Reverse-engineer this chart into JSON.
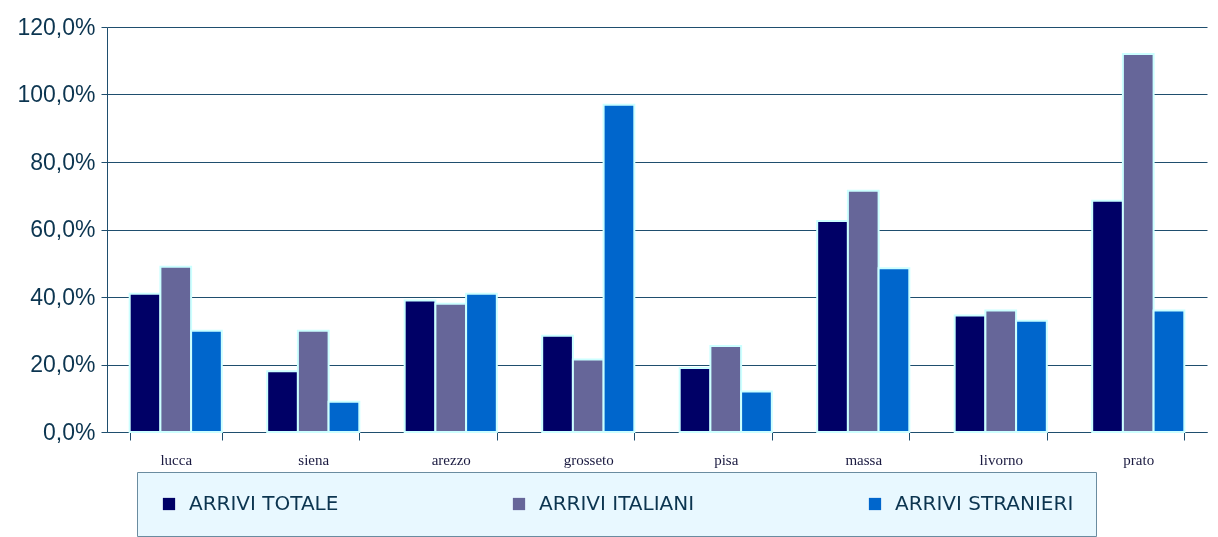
{
  "chart_data": {
    "type": "bar",
    "categories": [
      "lucca",
      "siena",
      "arezzo",
      "grosseto",
      "pisa",
      "massa",
      "livorno",
      "prato"
    ],
    "series": [
      {
        "name": "ARRIVI TOTALE",
        "color": "#000066",
        "values": [
          41,
          18,
          39,
          28.5,
          19,
          62.5,
          34.5,
          68.5
        ]
      },
      {
        "name": "ARRIVI ITALIANI",
        "color": "#666699",
        "values": [
          49,
          30,
          38,
          21.5,
          25.5,
          71.5,
          36,
          112
        ]
      },
      {
        "name": "ARRIVI STRANIERI",
        "color": "#0066cc",
        "values": [
          30,
          9,
          41,
          97,
          12,
          48.5,
          33,
          36
        ]
      }
    ],
    "ylim": [
      0,
      120
    ],
    "yticks": [
      {
        "value": 0,
        "label": "0,0%"
      },
      {
        "value": 20,
        "label": "20,0%"
      },
      {
        "value": 40,
        "label": "40,0%"
      },
      {
        "value": 60,
        "label": "60,0%"
      },
      {
        "value": 80,
        "label": "80,0%"
      },
      {
        "value": 100,
        "label": "100,0%"
      },
      {
        "value": 120,
        "label": "120,0%"
      }
    ],
    "grid": "y",
    "legend": "bottom"
  }
}
